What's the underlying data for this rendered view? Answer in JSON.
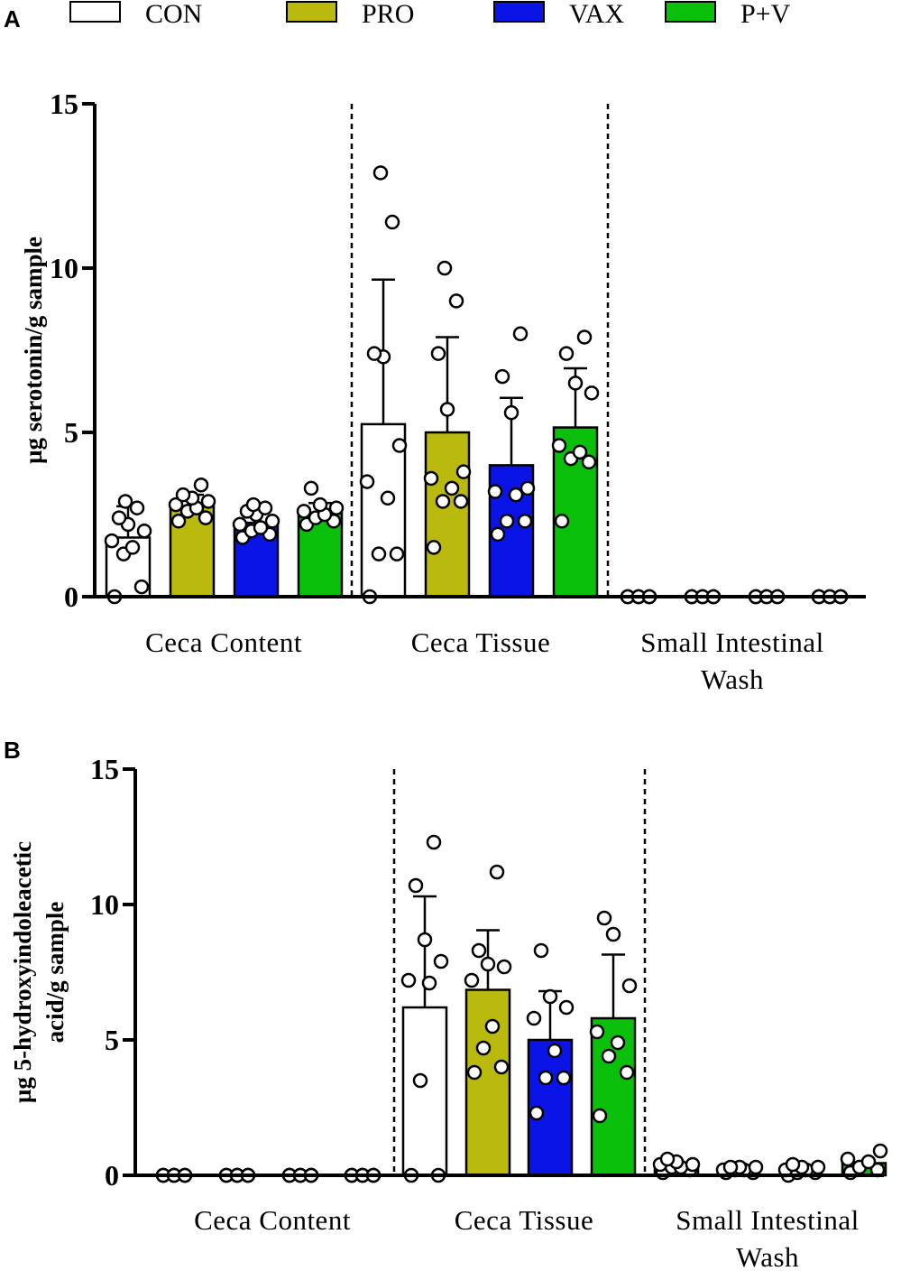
{
  "legend": [
    {
      "name": "CON",
      "color": "#ffffff"
    },
    {
      "name": "PRO",
      "color": "#b9b90e"
    },
    {
      "name": "VAX",
      "color": "#0a14e6"
    },
    {
      "name": "P+V",
      "color": "#0ac00a"
    }
  ],
  "chart_data": [
    {
      "panel": "A",
      "type": "bar",
      "ylabel": "µg serotonin/g sample",
      "ylim": [
        0,
        15
      ],
      "yticks": [
        0,
        5,
        10,
        15
      ],
      "groups": [
        {
          "label": "Ceca  Content",
          "label_lines": [
            "Ceca  Content"
          ]
        },
        {
          "label": "Ceca  Tissue",
          "label_lines": [
            "Ceca  Tissue"
          ]
        },
        {
          "label": "Small Intestinal Wash",
          "label_lines": [
            "Small Intestinal",
            "Wash"
          ]
        }
      ],
      "series": [
        {
          "name": "CON",
          "means": [
            1.8,
            5.25,
            0
          ],
          "sd": [
            0.95,
            4.4,
            0
          ],
          "points": [
            [
              0.0,
              0.3,
              1.3,
              1.5,
              1.7,
              2.0,
              2.2,
              2.4,
              2.7,
              2.9
            ],
            [
              0.0,
              1.3,
              1.3,
              3.0,
              3.5,
              4.6,
              7.3,
              7.4,
              11.4,
              12.9
            ],
            [
              0,
              0,
              0,
              0,
              0,
              0,
              0,
              0,
              0
            ]
          ]
        },
        {
          "name": "PRO",
          "means": [
            2.75,
            5.0,
            0
          ],
          "sd": [
            0.35,
            2.9,
            0
          ],
          "points": [
            [
              2.3,
              2.4,
              2.6,
              2.7,
              2.8,
              2.9,
              3.0,
              3.1,
              3.4
            ],
            [
              1.5,
              2.9,
              2.9,
              3.3,
              3.6,
              3.8,
              5.7,
              7.4,
              9.0,
              10.0
            ],
            [
              0,
              0,
              0,
              0,
              0,
              0,
              0,
              0,
              0
            ]
          ]
        },
        {
          "name": "VAX",
          "means": [
            2.25,
            4.0,
            0
          ],
          "sd": [
            0.3,
            2.05,
            0
          ],
          "points": [
            [
              1.8,
              1.9,
              2.0,
              2.1,
              2.2,
              2.3,
              2.5,
              2.6,
              2.7,
              2.8
            ],
            [
              1.9,
              2.3,
              2.3,
              3.1,
              3.2,
              3.3,
              5.6,
              6.7,
              8.0
            ],
            [
              0,
              0,
              0,
              0,
              0,
              0,
              0,
              0,
              0
            ]
          ]
        },
        {
          "name": "P+V",
          "means": [
            2.55,
            5.15,
            0
          ],
          "sd": [
            0.3,
            1.8,
            0
          ],
          "points": [
            [
              2.2,
              2.3,
              2.4,
              2.5,
              2.6,
              2.7,
              2.8,
              3.3
            ],
            [
              2.3,
              4.1,
              4.2,
              4.4,
              4.6,
              6.2,
              6.5,
              7.4,
              7.9
            ],
            [
              0,
              0,
              0,
              0,
              0,
              0,
              0,
              0,
              0
            ]
          ]
        }
      ]
    },
    {
      "panel": "B",
      "type": "bar",
      "ylabel": "µg 5-hydroxyindoleacetic acid/g sample",
      "ylabel_lines": [
        "µg 5-hydroxyindoleacetic",
        "acid/g sample"
      ],
      "ylim": [
        0,
        15
      ],
      "yticks": [
        0,
        5,
        10,
        15
      ],
      "groups": [
        {
          "label": "Ceca  Content",
          "label_lines": [
            "Ceca  Content"
          ]
        },
        {
          "label": "Ceca  Tissue",
          "label_lines": [
            "Ceca  Tissue"
          ]
        },
        {
          "label": "Small Intestinal Wash",
          "label_lines": [
            "Small Intestinal",
            "Wash"
          ]
        }
      ],
      "series": [
        {
          "name": "CON",
          "means": [
            0,
            6.2,
            0.28
          ],
          "sd": [
            0,
            4.1,
            0.1
          ],
          "points": [
            [
              0,
              0,
              0,
              0,
              0,
              0,
              0,
              0,
              0
            ],
            [
              0.0,
              0.0,
              3.5,
              7.1,
              7.2,
              7.9,
              8.7,
              10.7,
              12.3
            ],
            [
              0.1,
              0.2,
              0.3,
              0.3,
              0.4,
              0.4,
              0.5,
              0.6
            ]
          ]
        },
        {
          "name": "PRO",
          "means": [
            0,
            6.85,
            0
          ],
          "sd": [
            0,
            2.2,
            0
          ],
          "points": [
            [
              0,
              0,
              0,
              0,
              0,
              0,
              0,
              0,
              0
            ],
            [
              3.8,
              4.0,
              4.7,
              5.5,
              7.2,
              7.7,
              7.8,
              8.3,
              11.2
            ],
            [
              0.1,
              0.1,
              0.2,
              0.2,
              0.2,
              0.3,
              0.3,
              0.3
            ]
          ]
        },
        {
          "name": "VAX",
          "means": [
            0,
            5.0,
            0
          ],
          "sd": [
            0,
            1.8,
            0
          ],
          "points": [
            [
              0,
              0,
              0,
              0,
              0,
              0,
              0,
              0,
              0
            ],
            [
              2.3,
              3.6,
              3.6,
              4.6,
              5.8,
              6.2,
              6.6,
              8.3
            ],
            [
              0.0,
              0.1,
              0.1,
              0.2,
              0.2,
              0.3,
              0.3,
              0.4
            ]
          ]
        },
        {
          "name": "P+V",
          "means": [
            0,
            5.8,
            0.45
          ],
          "sd": [
            0,
            2.35,
            0
          ],
          "points": [
            [
              0,
              0,
              0,
              0,
              0,
              0,
              0,
              0,
              0
            ],
            [
              2.2,
              3.8,
              4.4,
              4.9,
              5.3,
              7.0,
              8.9,
              9.5
            ],
            [
              0.1,
              0.2,
              0.3,
              0.5,
              0.6,
              0.9
            ]
          ]
        }
      ]
    }
  ]
}
